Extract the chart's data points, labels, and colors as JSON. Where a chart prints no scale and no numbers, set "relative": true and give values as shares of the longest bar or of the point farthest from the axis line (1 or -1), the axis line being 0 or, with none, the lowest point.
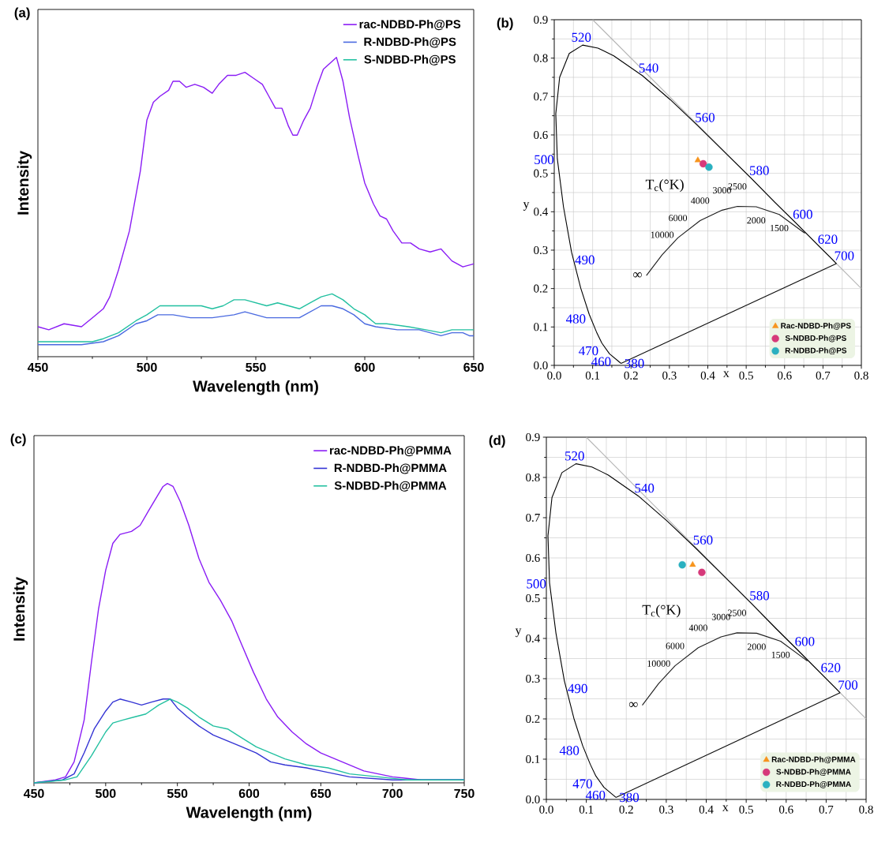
{
  "chart_data": [
    {
      "type": "line",
      "title": "(a)",
      "xlabel": "Wavelength (nm)",
      "ylabel": "Intensity",
      "relative": true,
      "legend": "top right",
      "xlim": [
        450,
        650
      ],
      "xticks": [
        450,
        500,
        550,
        600,
        650
      ],
      "series": [
        {
          "name": "rac-NDBD-Ph@PS",
          "color": "#8a1cf5",
          "x": [
            450,
            455,
            462,
            470,
            475,
            480,
            483,
            487,
            492,
            497,
            500,
            503,
            506,
            510,
            512,
            515,
            518,
            522,
            526,
            530,
            533,
            537,
            541,
            545,
            549,
            553,
            556,
            559,
            562,
            565,
            567,
            569,
            572,
            575,
            578,
            581,
            584,
            587,
            590,
            593,
            597,
            600,
            604,
            607,
            610,
            613,
            617,
            621,
            625,
            630,
            635,
            640,
            645,
            650
          ],
          "values": [
            0.1,
            0.09,
            0.11,
            0.1,
            0.13,
            0.16,
            0.2,
            0.29,
            0.42,
            0.62,
            0.79,
            0.85,
            0.87,
            0.89,
            0.92,
            0.92,
            0.9,
            0.91,
            0.9,
            0.88,
            0.91,
            0.94,
            0.94,
            0.95,
            0.93,
            0.91,
            0.87,
            0.83,
            0.83,
            0.77,
            0.74,
            0.74,
            0.79,
            0.83,
            0.9,
            0.96,
            0.98,
            1.0,
            0.92,
            0.8,
            0.67,
            0.58,
            0.51,
            0.47,
            0.46,
            0.42,
            0.38,
            0.38,
            0.36,
            0.35,
            0.36,
            0.32,
            0.3,
            0.31
          ]
        },
        {
          "name": "R-NDBD-Ph@PS",
          "color": "#4a6ae0",
          "x": [
            450,
            470,
            480,
            487,
            495,
            500,
            505,
            512,
            520,
            530,
            540,
            545,
            550,
            555,
            560,
            565,
            570,
            575,
            580,
            585,
            590,
            595,
            600,
            605,
            615,
            625,
            635,
            640,
            645,
            648,
            650
          ],
          "values": [
            0.04,
            0.04,
            0.05,
            0.07,
            0.11,
            0.12,
            0.14,
            0.14,
            0.13,
            0.13,
            0.14,
            0.15,
            0.14,
            0.13,
            0.13,
            0.13,
            0.13,
            0.15,
            0.17,
            0.17,
            0.16,
            0.14,
            0.11,
            0.1,
            0.09,
            0.09,
            0.07,
            0.08,
            0.08,
            0.07,
            0.07
          ]
        },
        {
          "name": "S-NDBD-Ph@PS",
          "color": "#22c0a0",
          "x": [
            450,
            475,
            480,
            487,
            495,
            500,
            506,
            515,
            525,
            530,
            535,
            540,
            545,
            550,
            555,
            560,
            565,
            570,
            575,
            580,
            585,
            590,
            595,
            600,
            605,
            610,
            620,
            628,
            635,
            640,
            650
          ],
          "values": [
            0.05,
            0.05,
            0.06,
            0.08,
            0.12,
            0.14,
            0.17,
            0.17,
            0.17,
            0.16,
            0.17,
            0.19,
            0.19,
            0.18,
            0.17,
            0.18,
            0.17,
            0.16,
            0.18,
            0.2,
            0.21,
            0.19,
            0.16,
            0.14,
            0.11,
            0.11,
            0.1,
            0.09,
            0.08,
            0.09,
            0.09
          ]
        }
      ]
    },
    {
      "type": "scatter",
      "title": "(b)",
      "xlabel": "x",
      "ylabel": "y",
      "xlim": [
        0,
        0.8
      ],
      "ylim": [
        0,
        0.9
      ],
      "grid": true,
      "legend": "bottom right",
      "xticks": [
        {
          "value": 0,
          "label": "0.0"
        },
        0.1,
        0.2,
        0.3,
        0.4,
        0.5,
        0.6,
        0.7,
        0.8
      ],
      "yticks": [
        {
          "value": 0,
          "label": "0.0"
        },
        0.1,
        0.2,
        0.3,
        0.4,
        0.5,
        0.6,
        0.7,
        0.8,
        0.9
      ],
      "annotations": [
        "T$_{c}$(°K)",
        {
          "text": "520",
          "x": 0.074,
          "y": 0.834
        },
        {
          "text": "540",
          "x": 0.23,
          "y": 0.754
        },
        {
          "text": "560",
          "x": 0.373,
          "y": 0.625
        },
        {
          "text": "580",
          "x": 0.513,
          "y": 0.487
        },
        {
          "text": "600",
          "x": 0.627,
          "y": 0.373
        },
        {
          "text": "620",
          "x": 0.692,
          "y": 0.308
        },
        {
          "text": "700",
          "x": 0.735,
          "y": 0.265
        },
        {
          "text": "500",
          "x": 0.008,
          "y": 0.538
        },
        {
          "text": "490",
          "x": 0.045,
          "y": 0.295
        },
        {
          "text": "480",
          "x": 0.091,
          "y": 0.133
        },
        {
          "text": "470",
          "x": 0.124,
          "y": 0.058
        },
        {
          "text": "460",
          "x": 0.144,
          "y": 0.03
        },
        {
          "text": "380",
          "x": 0.174,
          "y": 0.005
        },
        {
          "text": "∞",
          "x": 0.24,
          "y": 0.234
        },
        {
          "text": "10000",
          "x": 0.281,
          "y": 0.288
        },
        {
          "text": "6000",
          "x": 0.322,
          "y": 0.332
        },
        {
          "text": "4000",
          "x": 0.38,
          "y": 0.377
        },
        {
          "text": "3000",
          "x": 0.437,
          "y": 0.404
        },
        {
          "text": "2500",
          "x": 0.477,
          "y": 0.414
        },
        {
          "text": "2000",
          "x": 0.526,
          "y": 0.413
        },
        {
          "text": "1500",
          "x": 0.586,
          "y": 0.393
        }
      ],
      "series": [
        {
          "type": "line",
          "color": "#b4b4b4",
          "x": [
            0.1,
            0.8
          ],
          "values": [
            0.9,
            0.2
          ]
        },
        {
          "type": "line",
          "color": "#000000",
          "x": [
            0.174,
            0.144,
            0.124,
            0.11,
            0.091,
            0.069,
            0.045,
            0.024,
            0.008,
            0.004,
            0.014,
            0.039,
            0.074,
            0.114,
            0.155,
            0.23,
            0.302,
            0.373,
            0.444,
            0.513,
            0.575,
            0.627,
            0.692,
            0.719,
            0.735
          ],
          "values": [
            0.005,
            0.03,
            0.058,
            0.087,
            0.133,
            0.201,
            0.295,
            0.413,
            0.538,
            0.655,
            0.75,
            0.812,
            0.834,
            0.826,
            0.806,
            0.754,
            0.692,
            0.625,
            0.555,
            0.487,
            0.424,
            0.373,
            0.308,
            0.281,
            0.265
          ]
        },
        {
          "type": "line",
          "color": "#1c1c1c",
          "x": [
            0.24,
            0.281,
            0.322,
            0.38,
            0.437,
            0.477,
            0.526,
            0.586,
            0.653
          ],
          "values": [
            0.234,
            0.288,
            0.332,
            0.377,
            0.404,
            0.414,
            0.413,
            0.393,
            0.344
          ]
        },
        {
          "type": "line",
          "color": "#0e0e0e",
          "x": [
            0.735,
            0.174
          ],
          "values": [
            0.265,
            0.005
          ]
        },
        {
          "name": "Rac-NDBD-Ph@PS",
          "color": "#f7941d",
          "marker": "triangle",
          "x": [
            0.374
          ],
          "values": [
            0.534
          ]
        },
        {
          "name": "S-NDBD-Ph@PS",
          "color": "#d6397a",
          "marker": "circle",
          "x": [
            0.388
          ],
          "values": [
            0.525
          ]
        },
        {
          "name": "R-NDBD-Ph@PS",
          "color": "#2ab0c0",
          "marker": "circle",
          "x": [
            0.403
          ],
          "values": [
            0.516
          ]
        }
      ]
    },
    {
      "type": "line",
      "title": "(c)",
      "xlabel": "Wavelength (nm)",
      "ylabel": "Intensity",
      "relative": true,
      "legend": "top right",
      "xlim": [
        450,
        750
      ],
      "xticks": [
        450,
        500,
        550,
        600,
        650,
        700,
        750
      ],
      "series": [
        {
          "name": "rac-NDBD-Ph@PMMA",
          "color": "#8a1cf5",
          "x": [
            450,
            465,
            472,
            478,
            485,
            490,
            495,
            500,
            505,
            510,
            518,
            524,
            530,
            535,
            540,
            543,
            547,
            552,
            558,
            565,
            572,
            580,
            588,
            595,
            603,
            612,
            620,
            630,
            640,
            650,
            665,
            680,
            690,
            700,
            720,
            735,
            750
          ],
          "values": [
            0,
            0.01,
            0.02,
            0.07,
            0.21,
            0.4,
            0.58,
            0.71,
            0.8,
            0.83,
            0.84,
            0.86,
            0.91,
            0.95,
            0.99,
            1.0,
            0.99,
            0.94,
            0.86,
            0.75,
            0.67,
            0.61,
            0.54,
            0.46,
            0.37,
            0.28,
            0.22,
            0.17,
            0.13,
            0.1,
            0.07,
            0.04,
            0.03,
            0.02,
            0.01,
            0.01,
            0.01
          ]
        },
        {
          "name": "R-NDBD-Ph@PMMA",
          "color": "#3434d4",
          "x": [
            450,
            470,
            478,
            485,
            492,
            500,
            505,
            510,
            518,
            525,
            532,
            540,
            545,
            550,
            557,
            565,
            575,
            585,
            595,
            605,
            615,
            625,
            640,
            650,
            670,
            700,
            720,
            750
          ],
          "values": [
            0,
            0.01,
            0.03,
            0.1,
            0.18,
            0.24,
            0.27,
            0.28,
            0.27,
            0.26,
            0.27,
            0.28,
            0.28,
            0.25,
            0.22,
            0.19,
            0.16,
            0.14,
            0.12,
            0.1,
            0.07,
            0.06,
            0.05,
            0.04,
            0.02,
            0.01,
            0.01,
            0.01
          ]
        },
        {
          "name": "S-NDBD-Ph@PMMA",
          "color": "#22c0a0",
          "x": [
            450,
            472,
            480,
            490,
            500,
            505,
            512,
            520,
            528,
            537,
            545,
            550,
            557,
            565,
            575,
            585,
            595,
            605,
            615,
            625,
            640,
            655,
            670,
            690,
            710,
            750
          ],
          "values": [
            0,
            0.01,
            0.02,
            0.09,
            0.17,
            0.2,
            0.21,
            0.22,
            0.23,
            0.26,
            0.28,
            0.27,
            0.25,
            0.22,
            0.19,
            0.18,
            0.15,
            0.12,
            0.1,
            0.08,
            0.06,
            0.05,
            0.03,
            0.02,
            0.01,
            0.01
          ]
        }
      ]
    },
    {
      "type": "scatter",
      "title": "(d)",
      "xlabel": "x",
      "ylabel": "y",
      "xlim": [
        0,
        0.8
      ],
      "ylim": [
        0,
        0.9
      ],
      "grid": true,
      "legend": "bottom right",
      "xticks": [
        {
          "value": 0,
          "label": "0.0"
        },
        0.1,
        0.2,
        0.3,
        0.4,
        0.5,
        0.6,
        0.7,
        0.8
      ],
      "yticks": [
        {
          "value": 0,
          "label": "0.0"
        },
        0.1,
        0.2,
        0.3,
        0.4,
        0.5,
        0.6,
        0.7,
        0.8,
        0.9
      ],
      "annotations": [
        "T$_{c}$(°K)",
        {
          "text": "520",
          "x": 0.074,
          "y": 0.834
        },
        {
          "text": "540",
          "x": 0.23,
          "y": 0.754
        },
        {
          "text": "560",
          "x": 0.373,
          "y": 0.625
        },
        {
          "text": "580",
          "x": 0.513,
          "y": 0.487
        },
        {
          "text": "600",
          "x": 0.627,
          "y": 0.373
        },
        {
          "text": "620",
          "x": 0.692,
          "y": 0.308
        },
        {
          "text": "700",
          "x": 0.735,
          "y": 0.265
        },
        {
          "text": "500",
          "x": 0.008,
          "y": 0.538
        },
        {
          "text": "490",
          "x": 0.045,
          "y": 0.295
        },
        {
          "text": "480",
          "x": 0.091,
          "y": 0.133
        },
        {
          "text": "470",
          "x": 0.124,
          "y": 0.058
        },
        {
          "text": "460",
          "x": 0.144,
          "y": 0.03
        },
        {
          "text": "380",
          "x": 0.174,
          "y": 0.005
        },
        {
          "text": "∞",
          "x": 0.24,
          "y": 0.234
        },
        {
          "text": "10000",
          "x": 0.281,
          "y": 0.288
        },
        {
          "text": "6000",
          "x": 0.322,
          "y": 0.332
        },
        {
          "text": "4000",
          "x": 0.38,
          "y": 0.377
        },
        {
          "text": "3000",
          "x": 0.437,
          "y": 0.404
        },
        {
          "text": "2500",
          "x": 0.477,
          "y": 0.414
        },
        {
          "text": "2000",
          "x": 0.526,
          "y": 0.413
        },
        {
          "text": "1500",
          "x": 0.586,
          "y": 0.393
        }
      ],
      "series": [
        {
          "type": "line",
          "color": "#b4b4b4",
          "x": [
            0.1,
            0.8
          ],
          "values": [
            0.9,
            0.2
          ]
        },
        {
          "type": "line",
          "color": "#000000",
          "x": [
            0.174,
            0.144,
            0.124,
            0.11,
            0.091,
            0.069,
            0.045,
            0.024,
            0.008,
            0.004,
            0.014,
            0.039,
            0.074,
            0.114,
            0.155,
            0.23,
            0.302,
            0.373,
            0.444,
            0.513,
            0.575,
            0.627,
            0.692,
            0.719,
            0.735
          ],
          "values": [
            0.005,
            0.03,
            0.058,
            0.087,
            0.133,
            0.201,
            0.295,
            0.413,
            0.538,
            0.655,
            0.75,
            0.812,
            0.834,
            0.826,
            0.806,
            0.754,
            0.692,
            0.625,
            0.555,
            0.487,
            0.424,
            0.373,
            0.308,
            0.281,
            0.265
          ]
        },
        {
          "type": "line",
          "color": "#1c1c1c",
          "x": [
            0.24,
            0.281,
            0.322,
            0.38,
            0.437,
            0.477,
            0.526,
            0.586,
            0.653
          ],
          "values": [
            0.234,
            0.288,
            0.332,
            0.377,
            0.404,
            0.414,
            0.413,
            0.393,
            0.344
          ]
        },
        {
          "type": "line",
          "color": "#0e0e0e",
          "x": [
            0.735,
            0.174
          ],
          "values": [
            0.265,
            0.005
          ]
        },
        {
          "name": "Rac-NDBD-Ph@PMMA",
          "color": "#f7941d",
          "marker": "triangle",
          "x": [
            0.366
          ],
          "values": [
            0.583
          ]
        },
        {
          "name": "S-NDBD-Ph@PMMA",
          "color": "#d6397a",
          "marker": "circle",
          "x": [
            0.389
          ],
          "values": [
            0.564
          ]
        },
        {
          "name": "R-NDBD-Ph@PMMA",
          "color": "#2ab0c0",
          "marker": "circle",
          "x": [
            0.34
          ],
          "values": [
            0.583
          ]
        }
      ]
    }
  ]
}
